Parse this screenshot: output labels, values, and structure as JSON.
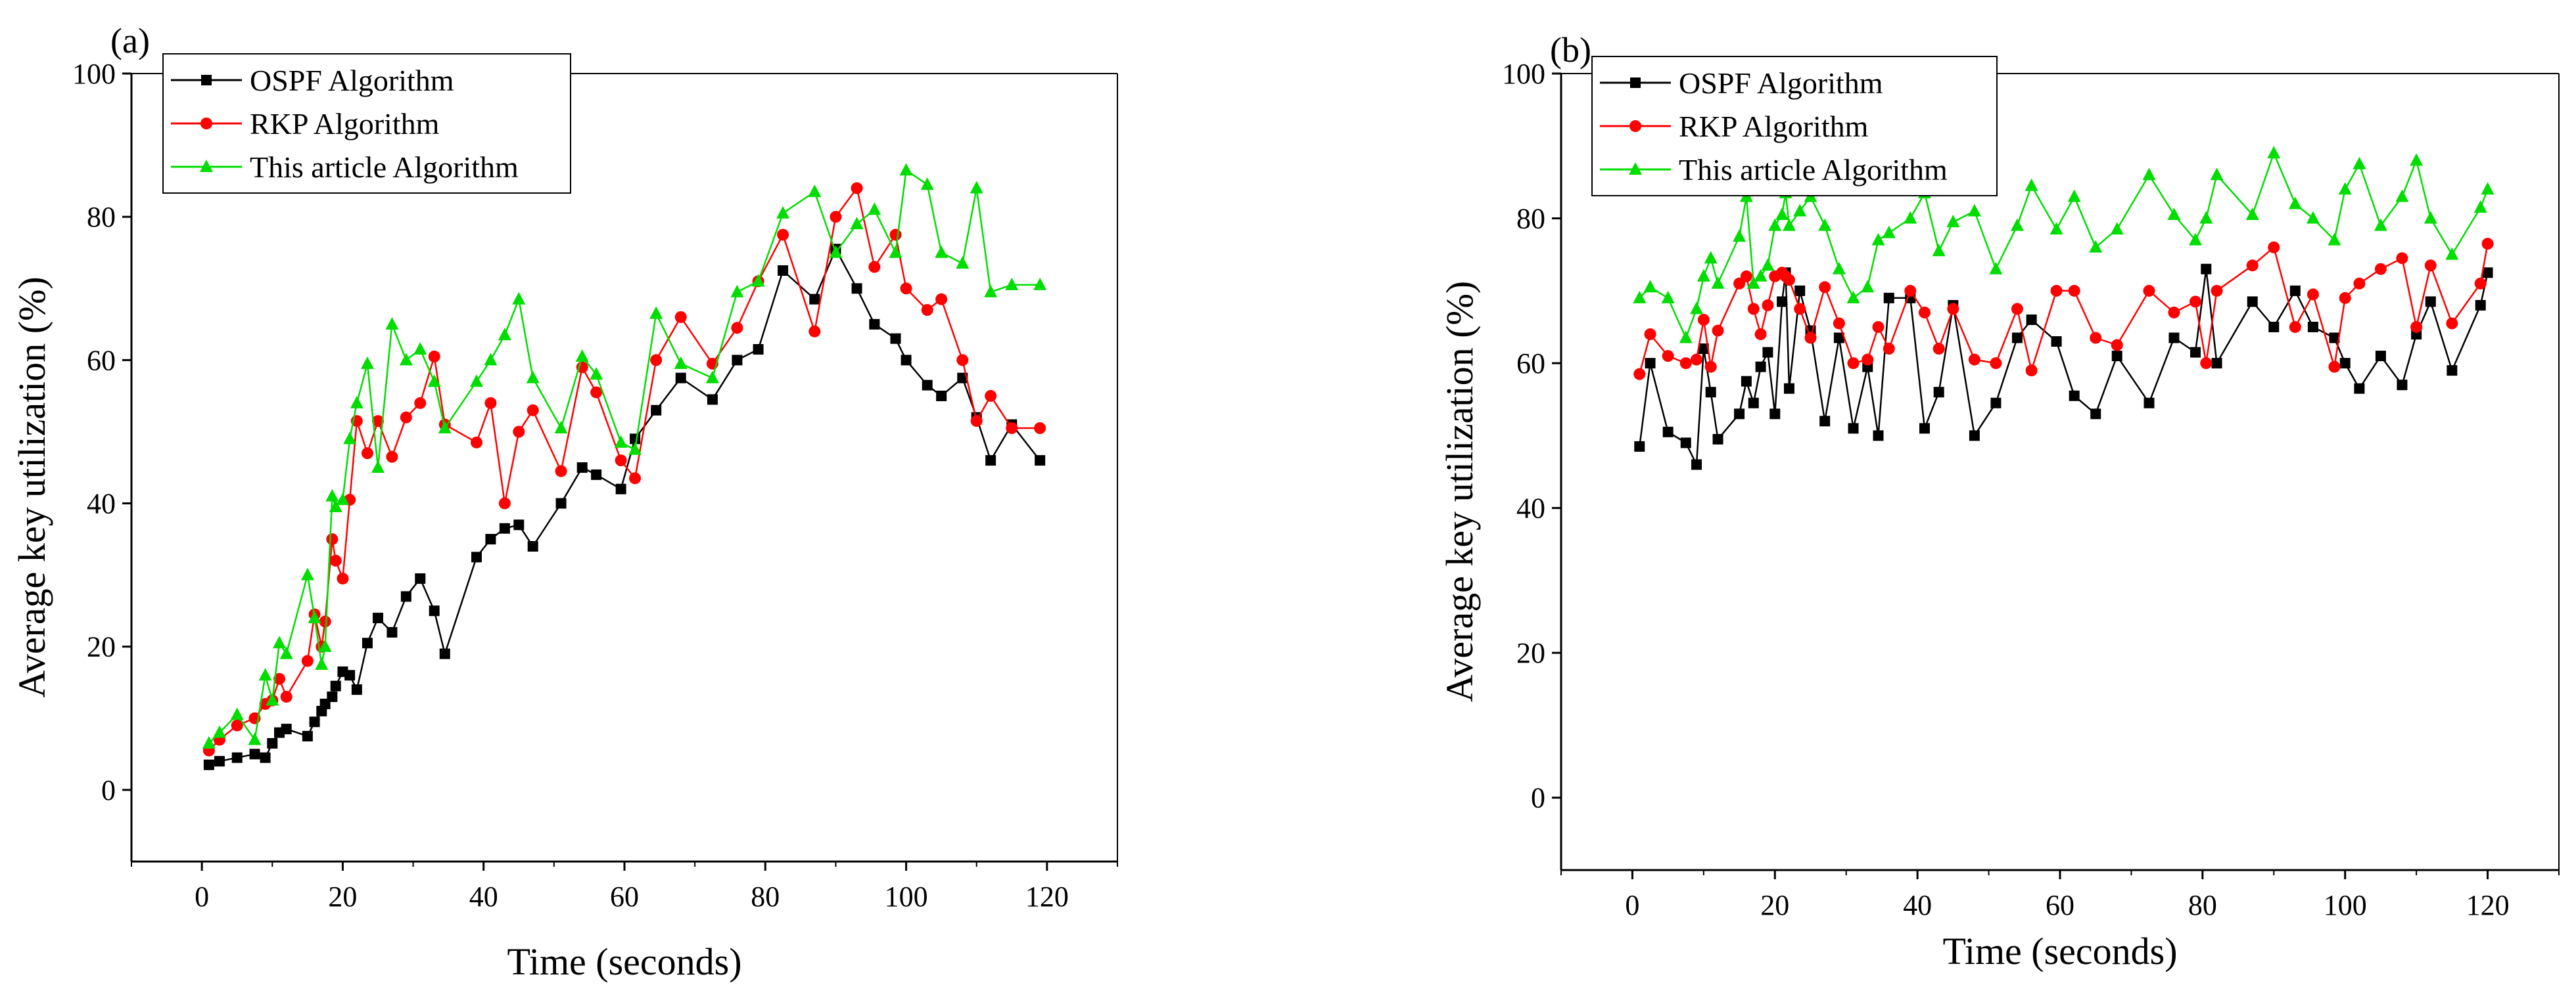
{
  "chart_data": [
    {
      "panel_label": "(a)",
      "type": "line",
      "xlabel": "Time (seconds)",
      "ylabel": "Average key utilization (%)",
      "xlim": [
        -10,
        130
      ],
      "ylim": [
        -10,
        100
      ],
      "xticks": [
        0,
        20,
        40,
        60,
        80,
        100,
        120
      ],
      "yticks": [
        0,
        20,
        40,
        60,
        80,
        100
      ],
      "legend_position": "top-left",
      "series": [
        {
          "name": "OSPF Algorithm",
          "color": "#000000",
          "marker": "square",
          "x": [
            1,
            2.5,
            5,
            7.5,
            9,
            10,
            11,
            12,
            15,
            16,
            17,
            17.5,
            18.5,
            19,
            20,
            21,
            22,
            23.5,
            25,
            27,
            29,
            31,
            33,
            34.5,
            39,
            41,
            43,
            45,
            47,
            51,
            54,
            56,
            59.5,
            61.5,
            64.5,
            68,
            72.5,
            76,
            79,
            82.5,
            87,
            90,
            93,
            95.5,
            98.5,
            100,
            103,
            105,
            108,
            110,
            112,
            115,
            119
          ],
          "y": [
            3.5,
            4,
            4.5,
            5,
            4.5,
            6.5,
            8,
            8.5,
            7.5,
            9.5,
            11,
            12,
            13,
            14.5,
            16.5,
            16,
            14,
            20.5,
            24,
            22,
            27,
            29.5,
            25,
            19,
            32.5,
            35,
            36.5,
            37,
            34,
            40,
            45,
            44,
            42,
            49,
            53,
            57.5,
            54.5,
            60,
            61.5,
            72.5,
            68.5,
            75.5,
            70,
            65,
            63,
            60,
            56.5,
            55,
            57.5,
            52,
            46,
            51,
            46
          ]
        },
        {
          "name": "RKP Algorithm",
          "color": "#ff0000",
          "marker": "circle",
          "x": [
            1,
            2.5,
            5,
            7.5,
            9,
            10,
            11,
            12,
            15,
            16,
            17,
            17.5,
            18.5,
            19,
            20,
            21,
            22,
            23.5,
            25,
            27,
            29,
            31,
            33,
            34.5,
            39,
            41,
            43,
            45,
            47,
            51,
            54,
            56,
            59.5,
            61.5,
            64.5,
            68,
            72.5,
            76,
            79,
            82.5,
            87,
            90,
            93,
            95.5,
            98.5,
            100,
            103,
            105,
            108,
            110,
            112,
            115,
            119
          ],
          "y": [
            5.5,
            7,
            9,
            10,
            12,
            12.5,
            15.5,
            13,
            18,
            24.5,
            20,
            23.5,
            35,
            32,
            29.5,
            40.5,
            51.5,
            47,
            51.5,
            46.5,
            52,
            54,
            60.5,
            51,
            48.5,
            54,
            40,
            50,
            53,
            44.5,
            59,
            55.5,
            46,
            43.5,
            60,
            66,
            59.5,
            64.5,
            71,
            77.5,
            64,
            80,
            84,
            73,
            77.5,
            70,
            67,
            68.5,
            60,
            51.5,
            55,
            50.5,
            50.5
          ]
        },
        {
          "name": "This article Algorithm",
          "color": "#00dd00",
          "marker": "triangle",
          "x": [
            1,
            2.5,
            5,
            7.5,
            9,
            10,
            11,
            12,
            15,
            16,
            17,
            17.5,
            18.5,
            19,
            20,
            21,
            22,
            23.5,
            25,
            27,
            29,
            31,
            33,
            34.5,
            39,
            41,
            43,
            45,
            47,
            51,
            54,
            56,
            59.5,
            61.5,
            64.5,
            68,
            72.5,
            76,
            79,
            82.5,
            87,
            90,
            93,
            95.5,
            98.5,
            100,
            103,
            105,
            108,
            110,
            112,
            115,
            119
          ],
          "y": [
            6.5,
            8,
            10.5,
            7,
            16,
            12.5,
            20.5,
            19,
            30,
            24,
            17.5,
            20,
            41,
            39.5,
            40.5,
            49,
            54,
            59.5,
            45,
            65,
            60,
            61.5,
            57,
            50.5,
            57,
            60,
            63.5,
            68.5,
            57.5,
            50.5,
            60.5,
            58,
            48.5,
            47.5,
            66.5,
            59.5,
            57.5,
            69.5,
            71,
            80.5,
            83.5,
            75,
            79,
            81,
            75,
            86.5,
            84.5,
            75,
            73.5,
            84,
            69.5,
            70.5,
            70.5
          ]
        }
      ]
    },
    {
      "panel_label": "(b)",
      "type": "line",
      "xlabel": "Time (seconds)",
      "ylabel": "Average key utilization (%)",
      "xlim": [
        -10,
        130
      ],
      "ylim": [
        -10,
        100
      ],
      "xticks": [
        0,
        20,
        40,
        60,
        80,
        100,
        120
      ],
      "yticks": [
        0,
        20,
        40,
        60,
        80,
        100
      ],
      "legend_position": "top-left",
      "series": [
        {
          "name": "OSPF Algorithm",
          "color": "#000000",
          "marker": "square",
          "x": [
            1,
            2.5,
            5,
            7.5,
            9,
            10,
            11,
            12,
            15,
            16,
            17,
            18,
            19,
            20,
            21,
            21.5,
            22,
            23.5,
            25,
            27,
            29,
            31,
            33,
            34.5,
            36,
            39,
            41,
            43,
            45,
            48,
            51,
            54,
            56,
            59.5,
            62,
            65,
            68,
            72.5,
            76,
            79,
            80.5,
            82,
            87,
            90,
            93,
            95.5,
            98.5,
            100,
            102,
            105,
            108,
            110,
            112,
            115,
            119,
            120
          ],
          "y": [
            48.5,
            60,
            50.5,
            49,
            46,
            62,
            56,
            49.5,
            53,
            57.5,
            54.5,
            59.5,
            61.5,
            53,
            68.5,
            72.5,
            56.5,
            70,
            64.5,
            52,
            63.5,
            51,
            59.5,
            50,
            69,
            69,
            51,
            56,
            68,
            50,
            54.5,
            63.5,
            66,
            63,
            55.5,
            53,
            61,
            54.5,
            63.5,
            61.5,
            73,
            60,
            68.5,
            65,
            70,
            65,
            63.5,
            60,
            56.5,
            61,
            57,
            64,
            68.5,
            59,
            68,
            72.5
          ]
        },
        {
          "name": "RKP Algorithm",
          "color": "#ff0000",
          "marker": "circle",
          "x": [
            1,
            2.5,
            5,
            7.5,
            9,
            10,
            11,
            12,
            15,
            16,
            17,
            18,
            19,
            20,
            21,
            21.5,
            22,
            23.5,
            25,
            27,
            29,
            31,
            33,
            34.5,
            36,
            39,
            41,
            43,
            45,
            48,
            51,
            54,
            56,
            59.5,
            62,
            65,
            68,
            72.5,
            76,
            79,
            80.5,
            82,
            87,
            90,
            93,
            95.5,
            98.5,
            100,
            102,
            105,
            108,
            110,
            112,
            115,
            119,
            120
          ],
          "y": [
            58.5,
            64,
            61,
            60,
            60.5,
            66,
            59.5,
            64.5,
            71,
            72,
            67.5,
            64,
            68,
            72,
            72.5,
            72,
            71.5,
            67.5,
            63.5,
            70.5,
            65.5,
            60,
            60.5,
            65,
            62,
            70,
            67,
            62,
            67.5,
            60.5,
            60,
            67.5,
            59,
            70,
            70,
            63.5,
            62.5,
            70,
            67,
            68.5,
            60,
            70,
            73.5,
            76,
            65,
            69.5,
            59.5,
            69,
            71,
            73,
            74.5,
            65,
            73.5,
            65.5,
            71,
            76.5
          ]
        },
        {
          "name": "This article Algorithm",
          "color": "#00dd00",
          "marker": "triangle",
          "x": [
            1,
            2.5,
            5,
            7.5,
            9,
            10,
            11,
            12,
            15,
            16,
            17,
            18,
            19,
            20,
            21,
            21.5,
            22,
            23.5,
            25,
            27,
            29,
            31,
            33,
            34.5,
            36,
            39,
            41,
            43,
            45,
            48,
            51,
            54,
            56,
            59.5,
            62,
            65,
            68,
            72.5,
            76,
            79,
            80.5,
            82,
            87,
            90,
            93,
            95.5,
            98.5,
            100,
            102,
            105,
            108,
            110,
            112,
            115,
            119,
            120
          ],
          "y": [
            69,
            70.5,
            69,
            63.5,
            67.5,
            72,
            74.5,
            71,
            77.5,
            83,
            71,
            72,
            73.5,
            79,
            80.5,
            83.5,
            79,
            81,
            83,
            79,
            73,
            69,
            70.5,
            77,
            78,
            80,
            83.5,
            75.5,
            79.5,
            81,
            73,
            79,
            84.5,
            78.5,
            83,
            76,
            78.5,
            86,
            80.5,
            77,
            80,
            86,
            80.5,
            89,
            82,
            80,
            77,
            84,
            87.5,
            79,
            83,
            88,
            80,
            75,
            81.5,
            84
          ]
        }
      ]
    }
  ]
}
